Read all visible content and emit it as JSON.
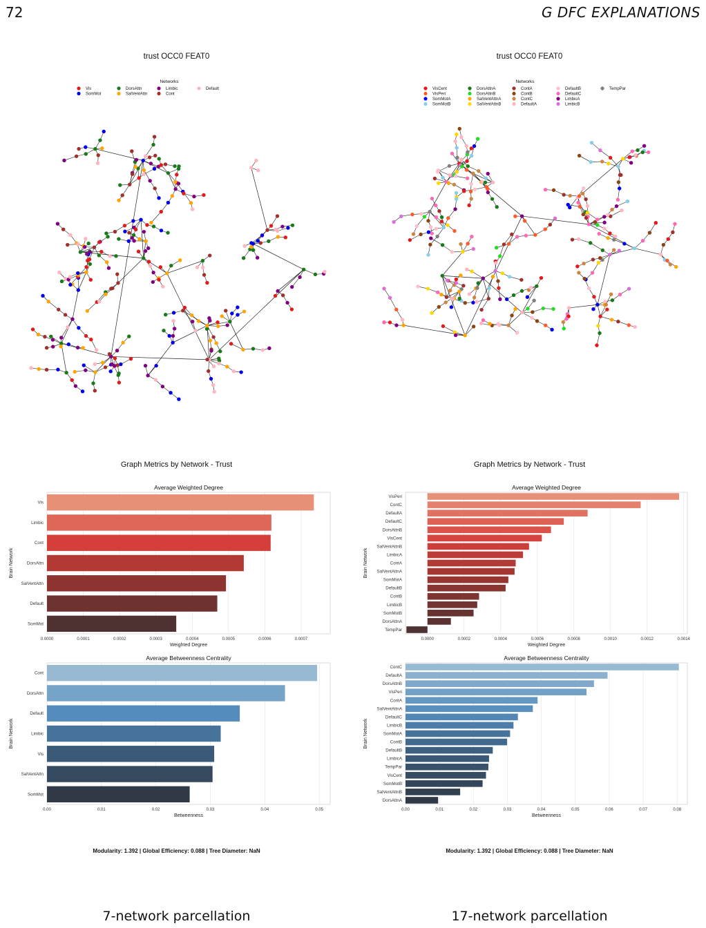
{
  "header": {
    "page_number": "72",
    "section_title": "G   DFC EXPLANATIONS"
  },
  "colors": {
    "7net": {
      "Vis": "#e31a1c",
      "SomMot": "#0000ee",
      "DorsAttn": "#1a7a1a",
      "SalVentAttn": "#ffa500",
      "Limbic": "#800080",
      "Cont": "#a0302a",
      "Default": "#ffb6c1"
    },
    "17net": {
      "VisCent": "#e31a1c",
      "VisPeri": "#ff5a2a",
      "SomMotA": "#0000ee",
      "SomMotB": "#87ceeb",
      "DorsAttnA": "#1a7a1a",
      "DorsAttnB": "#22dd22",
      "SalVentAttnA": "#ffa500",
      "SalVentAttnB": "#ffd700",
      "ContA": "#a0302a",
      "ContB": "#8b4513",
      "ContC": "#cd853f",
      "DefaultA": "#ffb6c1",
      "DefaultB": "#ffc0cb",
      "DefaultC": "#ff69b4",
      "LimbicA": "#800080",
      "LimbicB": "#da70d6",
      "TempPar": "#808080"
    }
  },
  "left": {
    "graph_title": "trust OCC0 FEAT0",
    "legend_title": "Networks",
    "legend": [
      "Vis",
      "SomMot",
      "DorsAttn",
      "SalVentAttn",
      "Limbic",
      "Cont",
      "Default"
    ],
    "metrics_title": "Graph Metrics by Network - Trust",
    "footer": "Modularity: 1.392    |    Global Efficiency: 0.088    |    Tree Diameter: NaN",
    "caption": "7-network parcellation"
  },
  "right": {
    "graph_title": "trust OCC0 FEAT0",
    "legend_title": "Networks",
    "legend": [
      "VisCent",
      "VisPeri",
      "SomMotA",
      "SomMotB",
      "DorsAttnA",
      "DorsAttnB",
      "SalVentAttnA",
      "SalVentAttnB",
      "ContA",
      "ContB",
      "ContC",
      "DefaultA",
      "DefaultB",
      "DefaultC",
      "LimbicA",
      "LimbicB",
      "TempPar"
    ],
    "metrics_title": "Graph Metrics by Network - Trust",
    "footer": "Modularity: 1.392    |    Global Efficiency: 0.088    |    Tree Diameter: NaN",
    "caption": "17-network parcellation"
  },
  "chart_data": [
    {
      "id": "left-degree",
      "type": "bar",
      "orientation": "horizontal",
      "title": "Average Weighted Degree",
      "xlabel": "Weighted Degree",
      "ylabel": "Brain Network",
      "xlim": [
        0,
        0.00078
      ],
      "xticks": [
        0,
        0.0001,
        0.0002,
        0.0003,
        0.0004,
        0.0005,
        0.0006,
        0.0007
      ],
      "xtick_labels": [
        "0.0000",
        "0.0001",
        "0.0002",
        "0.0003",
        "0.0004",
        "0.0005",
        "0.0006",
        "0.0007"
      ],
      "categories": [
        "Vis",
        "Limbic",
        "Cont",
        "DorsAttn",
        "SalVentAttn",
        "Default",
        "SomMot"
      ],
      "values": [
        0.000735,
        0.000618,
        0.000616,
        0.000542,
        0.000493,
        0.000469,
        0.000356
      ],
      "palette": "reds"
    },
    {
      "id": "left-betweenness",
      "type": "bar",
      "orientation": "horizontal",
      "title": "Average Betweenness Centrality",
      "xlabel": "Betweenness",
      "ylabel": "Brain Network",
      "xlim": [
        0,
        0.052
      ],
      "xticks": [
        0,
        0.01,
        0.02,
        0.03,
        0.04,
        0.05
      ],
      "xtick_labels": [
        "0.00",
        "0.01",
        "0.02",
        "0.03",
        "0.04",
        "0.05"
      ],
      "categories": [
        "Cont",
        "DorsAttn",
        "Default",
        "Limbic",
        "Vis",
        "SalVentAttn",
        "SomMot"
      ],
      "values": [
        0.0496,
        0.0437,
        0.0354,
        0.0319,
        0.0307,
        0.0304,
        0.0262
      ],
      "palette": "blues"
    },
    {
      "id": "right-degree",
      "type": "bar",
      "orientation": "horizontal",
      "title": "Average Weighted Degree",
      "xlabel": "Weighted Degree",
      "ylabel": "Brain Network",
      "xlim": [
        -0.00012,
        0.00142
      ],
      "xticks": [
        0,
        0.0002,
        0.0004,
        0.0006,
        0.0008,
        0.001,
        0.0012,
        0.0014
      ],
      "xtick_labels": [
        "0.0000",
        "0.0002",
        "0.0004",
        "0.0006",
        "0.0008",
        "0.0010",
        "0.0012",
        "0.0014"
      ],
      "categories": [
        "VisPeri",
        "ContC",
        "DefaultA",
        "DefaultC",
        "DorsAttnB",
        "VisCent",
        "SalVentAttnB",
        "LimbicA",
        "ContA",
        "SalVentAttnA",
        "SomMotA",
        "DefaultB",
        "ContB",
        "LimbicB",
        "SomMotB",
        "DorsAttnA",
        "TempPar"
      ],
      "values": [
        0.001375,
        0.001165,
        0.000875,
        0.000745,
        0.000675,
        0.000625,
        0.000555,
        0.000522,
        0.000482,
        0.000476,
        0.000442,
        0.000427,
        0.000282,
        0.000272,
        0.000252,
        0.000128,
        -0.000115
      ],
      "palette": "reds"
    },
    {
      "id": "right-betweenness",
      "type": "bar",
      "orientation": "horizontal",
      "title": "Average Betweenness Centrality",
      "xlabel": "Betweenness",
      "ylabel": "Brain Network",
      "xlim": [
        0,
        0.083
      ],
      "xticks": [
        0,
        0.01,
        0.02,
        0.03,
        0.04,
        0.05,
        0.06,
        0.07,
        0.08
      ],
      "xtick_labels": [
        "0.00",
        "0.01",
        "0.02",
        "0.03",
        "0.04",
        "0.05",
        "0.06",
        "0.07",
        "0.08"
      ],
      "categories": [
        "ContC",
        "DefaultA",
        "DorsAttnB",
        "VisPeri",
        "ContA",
        "SalVentAttnA",
        "DefaultC",
        "LimbicB",
        "SomMotA",
        "ContB",
        "DefaultB",
        "LimbicA",
        "TempPar",
        "VisCent",
        "SomMotB",
        "SalVentAttnB",
        "DorsAttnA"
      ],
      "values": [
        0.0805,
        0.0595,
        0.0555,
        0.0533,
        0.0389,
        0.0375,
        0.0331,
        0.0318,
        0.0308,
        0.0299,
        0.0257,
        0.0246,
        0.0244,
        0.0237,
        0.0227,
        0.0161,
        0.0096
      ],
      "palette": "blues"
    }
  ]
}
